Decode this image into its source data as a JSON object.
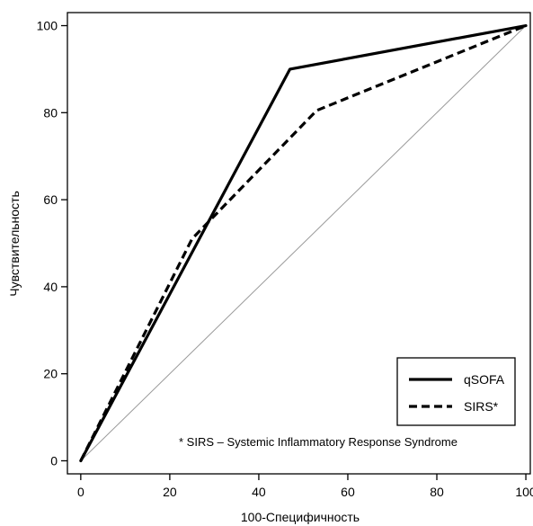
{
  "chart_data": {
    "type": "line",
    "xlabel": "100-Специфичность",
    "ylabel": "Чувствительность",
    "xlim": [
      -3,
      101
    ],
    "ylim": [
      -3,
      103
    ],
    "xticks": [
      0,
      20,
      40,
      60,
      80,
      100
    ],
    "yticks": [
      0,
      20,
      40,
      60,
      80,
      100
    ],
    "grid": false,
    "legend_position": "bottom-right",
    "series": [
      {
        "name": "qSOFA",
        "style": "solid",
        "color": "#000000",
        "x": [
          0,
          47,
          100
        ],
        "y": [
          0,
          90,
          100
        ]
      },
      {
        "name": "SIRS*",
        "style": "dashed",
        "color": "#000000",
        "x": [
          0,
          25,
          53,
          100
        ],
        "y": [
          0,
          51,
          80.5,
          100
        ]
      },
      {
        "name": "",
        "style": "reference",
        "color": "#999999",
        "x": [
          0,
          100
        ],
        "y": [
          0,
          100
        ]
      }
    ],
    "annotation": "* SIRS – Systemic Inflammatory Response Syndrome"
  }
}
